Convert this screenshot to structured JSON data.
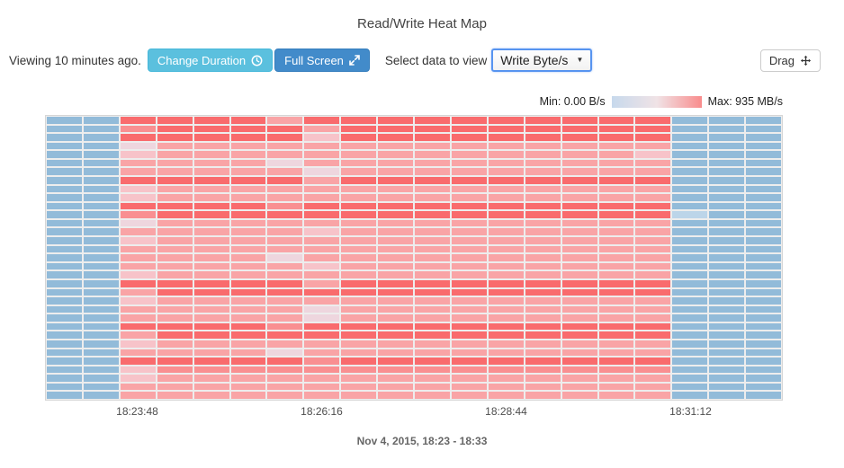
{
  "title": "Read/Write Heat Map",
  "toolbar": {
    "viewing_label": "Viewing 10 minutes ago.",
    "change_duration_label": "Change Duration",
    "full_screen_label": "Full Screen",
    "select_label": "Select data to view",
    "select_value": "Write Byte/s",
    "drag_label": "Drag"
  },
  "legend": {
    "min_label": "Min: 0.00 B/s",
    "max_label": "Max: 935 MB/s",
    "gradient": [
      "#c7d9ec",
      "#f0e3e6",
      "#f98c8c"
    ]
  },
  "footer": {
    "date_range": "Nov 4, 2015, 18:23 - 18:33"
  },
  "chart_data": {
    "type": "heatmap",
    "title": "Read/Write Heat Map",
    "metric": "Write Byte/s",
    "value_min_label": "0.00 B/s",
    "value_max_label": "935 MB/s",
    "columns": 20,
    "rows": 33,
    "x_tick_labels": [
      "18:23:48",
      "18:26:16",
      "18:28:44",
      "18:31:12"
    ],
    "x_tick_columns": [
      2,
      7,
      12,
      17
    ],
    "level_colors": {
      "b": "#92bbd9",
      "B": "#bcd5e9",
      "0": "#eed6de",
      "1": "#f7c3c9",
      "2": "#f9a4a6",
      "3": "#f98f91",
      "4": "#f96b6d"
    },
    "level_value_estimates_MBps": {
      "b": 0,
      "B": 60,
      "0": 420,
      "1": 480,
      "2": 580,
      "3": 680,
      "4": 900
    },
    "grid": [
      "bb444424444444444bbb",
      "bb344442444444444bbb",
      "bb444441444444444bbb",
      "bb022222222222222bbb",
      "bb122222222222221bbb",
      "bb222202222222222bbb",
      "bb222220222222222bbb",
      "bb444442444444444bbb",
      "bb122222222222222bbb",
      "bb122222222222222bbb",
      "bb444434444444444bbb",
      "bb344444444444444Bbb",
      "bb022222222222222bbb",
      "bb222221222222222bbb",
      "bb122222222222222bbb",
      "bb222222222222222bbb",
      "bb222202222222222bbb",
      "bb222221222222222bbb",
      "bb122222222222222bbb",
      "bb444442444444444bbb",
      "bb244444444444444bbb",
      "bb122222222222222bbb",
      "bb222220222222222bbb",
      "bb222220222222222bbb",
      "bb444434444444444bbb",
      "bb244444444444444bbb",
      "bb122222222222222bbb",
      "bb222202222222222bbb",
      "bb444443444444444bbb",
      "bb133333333333333bbb",
      "bb122222222222222bbb",
      "bb222222222222222bbb",
      "bb222222222222222bbb"
    ]
  }
}
